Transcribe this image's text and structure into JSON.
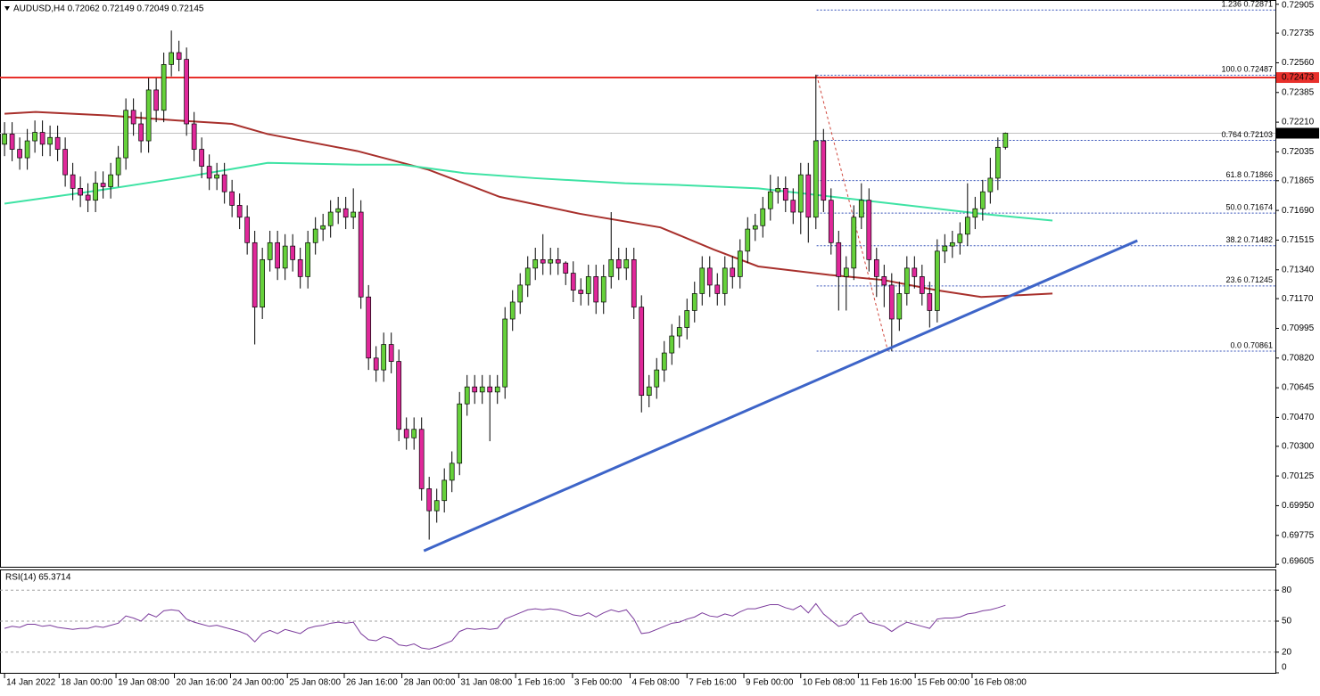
{
  "chart_data": [
    {
      "type": "candlestick",
      "title": "AUDUSD,H4  0.72062 0.72149 0.72049 0.72145",
      "xlim": [
        -0.6,
        167.6
      ],
      "ylim": [
        0.6959,
        0.7293
      ],
      "xticks": [
        {
          "value": 0,
          "label": "14 Jan 2022"
        },
        {
          "value": 7.2,
          "label": "18 Jan 00:00"
        },
        {
          "value": 14.7,
          "label": "19 Jan 08:00"
        },
        {
          "value": 22.4,
          "label": "20 Jan 16:00"
        },
        {
          "value": 29.8,
          "label": "24 Jan 00:00"
        },
        {
          "value": 37.3,
          "label": "25 Jan 08:00"
        },
        {
          "value": 44.8,
          "label": "26 Jan 16:00"
        },
        {
          "value": 52.4,
          "label": "28 Jan 00:00"
        },
        {
          "value": 59.9,
          "label": "31 Jan 08:00"
        },
        {
          "value": 67.4,
          "label": "1 Feb 16:00"
        },
        {
          "value": 74.9,
          "label": "3 Feb 00:00"
        },
        {
          "value": 82.5,
          "label": "4 Feb 08:00"
        },
        {
          "value": 90,
          "label": "7 Feb 16:00"
        },
        {
          "value": 97.5,
          "label": "9 Feb 00:00"
        },
        {
          "value": 105,
          "label": "10 Feb 08:00"
        },
        {
          "value": 112.6,
          "label": "11 Feb 16:00"
        },
        {
          "value": 120.1,
          "label": "15 Feb 00:00"
        },
        {
          "value": 127.6,
          "label": "16 Feb 08:00"
        }
      ],
      "yticks": [
        0.72905,
        0.72735,
        {
          "value": 0.7256,
          "label": "0.72560"
        },
        0.72385,
        {
          "value": 0.7221,
          "label": "0.72210"
        },
        0.72035,
        0.71865,
        {
          "value": 0.7169,
          "label": "0.71690"
        },
        0.71515,
        {
          "value": 0.7134,
          "label": "0.71340"
        },
        {
          "value": 0.7117,
          "label": "0.71170"
        },
        0.70995,
        {
          "value": 0.7082,
          "label": "0.70820"
        },
        0.70645,
        {
          "value": 0.7047,
          "label": "0.70470"
        },
        {
          "value": 0.703,
          "label": "0.70300"
        },
        0.70125,
        {
          "value": 0.6995,
          "label": "0.69950"
        },
        0.69775,
        0.69605
      ],
      "up_color": "#66d13b",
      "down_color": "#e0289a",
      "open": [
        0.7208,
        0.7214,
        0.7205,
        0.72,
        0.721,
        0.7215,
        0.7208,
        0.7212,
        0.7205,
        0.719,
        0.7182,
        0.7178,
        0.7175,
        0.7185,
        0.7183,
        0.719,
        0.72,
        0.7228,
        0.722,
        0.721,
        0.724,
        0.7228,
        0.7255,
        0.7262,
        0.7258,
        0.722,
        0.7205,
        0.7195,
        0.7188,
        0.719,
        0.718,
        0.7172,
        0.7165,
        0.715,
        0.7112,
        0.714,
        0.715,
        0.7135,
        0.7148,
        0.714,
        0.713,
        0.715,
        0.7158,
        0.716,
        0.7168,
        0.717,
        0.7165,
        0.7168,
        0.7118,
        0.7082,
        0.7075,
        0.709,
        0.708,
        0.704,
        0.7035,
        0.704,
        0.7005,
        0.6992,
        0.6998,
        0.701,
        0.702,
        0.7055,
        0.7065,
        0.7062,
        0.7065,
        0.7062,
        0.7065,
        0.7105,
        0.7115,
        0.7125,
        0.7135,
        0.714,
        0.7138,
        0.714,
        0.7138,
        0.7132,
        0.7122,
        0.712,
        0.713,
        0.7115,
        0.713,
        0.714,
        0.7135,
        0.714,
        0.7112,
        0.706,
        0.7065,
        0.7075,
        0.7085,
        0.7095,
        0.71,
        0.711,
        0.712,
        0.7135,
        0.7125,
        0.712,
        0.7135,
        0.713,
        0.7145,
        0.7158,
        0.716,
        0.717,
        0.718,
        0.7182,
        0.7175,
        0.7168,
        0.719,
        0.7165,
        0.721,
        0.7175,
        0.715,
        0.713,
        0.7135,
        0.7165,
        0.7175,
        0.714,
        0.713,
        0.7125,
        0.7105,
        0.712,
        0.7135,
        0.713,
        0.712,
        0.711,
        0.7145,
        0.7148,
        0.715,
        0.7155,
        0.7165,
        0.717,
        0.718,
        0.7188,
        0.72062
      ],
      "high": [
        0.7221,
        0.7221,
        0.7212,
        0.7217,
        0.7222,
        0.7222,
        0.7219,
        0.7219,
        0.7212,
        0.7197,
        0.7189,
        0.7185,
        0.7192,
        0.7192,
        0.7197,
        0.7207,
        0.7235,
        0.7235,
        0.7227,
        0.7247,
        0.7247,
        0.7262,
        0.7275,
        0.7269,
        0.7265,
        0.7227,
        0.7212,
        0.7202,
        0.7197,
        0.7197,
        0.7187,
        0.7179,
        0.7172,
        0.7157,
        0.7147,
        0.7157,
        0.7157,
        0.7155,
        0.7155,
        0.7147,
        0.7157,
        0.7165,
        0.7167,
        0.7175,
        0.7177,
        0.7177,
        0.7182,
        0.7175,
        0.7125,
        0.7089,
        0.7097,
        0.7097,
        0.7087,
        0.7047,
        0.7047,
        0.7047,
        0.7012,
        0.7005,
        0.7017,
        0.7027,
        0.7062,
        0.7072,
        0.7072,
        0.7072,
        0.7072,
        0.7072,
        0.7112,
        0.7122,
        0.7132,
        0.7142,
        0.7147,
        0.7155,
        0.7147,
        0.7147,
        0.7139,
        0.7139,
        0.7129,
        0.7137,
        0.7137,
        0.7137,
        0.7168,
        0.7147,
        0.7147,
        0.7147,
        0.7119,
        0.7072,
        0.7082,
        0.7092,
        0.7102,
        0.7107,
        0.7117,
        0.7127,
        0.7142,
        0.7142,
        0.7132,
        0.7142,
        0.7142,
        0.7152,
        0.7165,
        0.7167,
        0.7177,
        0.719,
        0.7189,
        0.7189,
        0.7182,
        0.7197,
        0.7197,
        0.7249,
        0.7217,
        0.7182,
        0.7157,
        0.7142,
        0.7172,
        0.7185,
        0.7182,
        0.7147,
        0.7137,
        0.7132,
        0.7127,
        0.7142,
        0.7142,
        0.7137,
        0.7127,
        0.7152,
        0.7155,
        0.7157,
        0.7162,
        0.7185,
        0.7177,
        0.7187,
        0.72,
        0.7212,
        0.72149
      ],
      "low": [
        0.7201,
        0.7198,
        0.7193,
        0.7193,
        0.7203,
        0.7201,
        0.7201,
        0.7198,
        0.7183,
        0.7175,
        0.7171,
        0.7168,
        0.7168,
        0.7176,
        0.7176,
        0.7183,
        0.7193,
        0.7213,
        0.7203,
        0.7203,
        0.7221,
        0.7221,
        0.7248,
        0.7251,
        0.7213,
        0.7198,
        0.7188,
        0.7181,
        0.7181,
        0.7173,
        0.7165,
        0.7158,
        0.7143,
        0.709,
        0.7105,
        0.7133,
        0.7128,
        0.7128,
        0.7133,
        0.7123,
        0.7123,
        0.7143,
        0.7151,
        0.7153,
        0.7161,
        0.7158,
        0.7158,
        0.7111,
        0.7075,
        0.7068,
        0.7068,
        0.7073,
        0.7033,
        0.7028,
        0.7028,
        0.6998,
        0.6975,
        0.6985,
        0.6991,
        0.7003,
        0.7013,
        0.7048,
        0.7055,
        0.7055,
        0.7033,
        0.7055,
        0.7058,
        0.7098,
        0.7108,
        0.7118,
        0.7128,
        0.7131,
        0.7131,
        0.7131,
        0.7125,
        0.7115,
        0.7113,
        0.7113,
        0.7108,
        0.7108,
        0.7123,
        0.7128,
        0.7128,
        0.7105,
        0.705,
        0.7053,
        0.7058,
        0.7068,
        0.7078,
        0.7088,
        0.7093,
        0.7103,
        0.7113,
        0.7118,
        0.7113,
        0.7113,
        0.7123,
        0.7123,
        0.7138,
        0.7151,
        0.7153,
        0.7163,
        0.7173,
        0.7168,
        0.7161,
        0.7155,
        0.715,
        0.7158,
        0.7168,
        0.7143,
        0.711,
        0.711,
        0.7128,
        0.7158,
        0.7133,
        0.7118,
        0.7112,
        0.7086,
        0.7098,
        0.7113,
        0.7123,
        0.7113,
        0.71,
        0.7103,
        0.7138,
        0.7141,
        0.7143,
        0.7148,
        0.7158,
        0.7163,
        0.7173,
        0.7181,
        0.72049
      ],
      "close": [
        0.7214,
        0.7205,
        0.72,
        0.721,
        0.7215,
        0.7208,
        0.7212,
        0.7205,
        0.719,
        0.7182,
        0.7178,
        0.7175,
        0.7185,
        0.7183,
        0.719,
        0.72,
        0.7228,
        0.722,
        0.721,
        0.724,
        0.7228,
        0.7255,
        0.7262,
        0.7258,
        0.722,
        0.7205,
        0.7195,
        0.7188,
        0.719,
        0.718,
        0.7172,
        0.7165,
        0.715,
        0.7112,
        0.714,
        0.715,
        0.7135,
        0.7148,
        0.714,
        0.713,
        0.715,
        0.7158,
        0.716,
        0.7168,
        0.717,
        0.7165,
        0.7168,
        0.7118,
        0.7082,
        0.7075,
        0.709,
        0.708,
        0.704,
        0.7035,
        0.704,
        0.7005,
        0.6992,
        0.6998,
        0.701,
        0.702,
        0.7055,
        0.7065,
        0.7062,
        0.7065,
        0.7062,
        0.7065,
        0.7105,
        0.7115,
        0.7125,
        0.7135,
        0.714,
        0.7138,
        0.714,
        0.7138,
        0.7132,
        0.7122,
        0.712,
        0.713,
        0.7115,
        0.713,
        0.714,
        0.7135,
        0.714,
        0.7112,
        0.706,
        0.7065,
        0.7075,
        0.7085,
        0.7095,
        0.71,
        0.711,
        0.712,
        0.7135,
        0.7125,
        0.712,
        0.7135,
        0.713,
        0.7145,
        0.7158,
        0.716,
        0.717,
        0.718,
        0.7182,
        0.7175,
        0.7168,
        0.719,
        0.7165,
        0.721,
        0.7175,
        0.715,
        0.713,
        0.7135,
        0.7165,
        0.7175,
        0.714,
        0.713,
        0.7125,
        0.7105,
        0.712,
        0.7135,
        0.713,
        0.712,
        0.711,
        0.7145,
        0.7148,
        0.715,
        0.7155,
        0.7165,
        0.717,
        0.718,
        0.7188,
        0.72062,
        0.72145
      ],
      "moving_averages": [
        {
          "color": "#a8302c",
          "x": [
            0,
            4.1,
            13.5,
            22.9,
            30,
            34.7,
            46.5,
            55.9,
            65.3,
            75.9,
            86.5,
            93.5,
            99.4,
            108.8,
            115.9,
            122.9,
            128.8,
            138.2
          ],
          "values": [
            0.7226,
            0.7227,
            0.7225,
            0.7222,
            0.722,
            0.7214,
            0.7204,
            0.7193,
            0.7177,
            0.7167,
            0.7159,
            0.7146,
            0.7136,
            0.7131,
            0.7128,
            0.7122,
            0.7118,
            0.712
          ]
        },
        {
          "color": "#3ee3a4",
          "x": [
            0,
            11.2,
            22.9,
            34.7,
            46.5,
            52.4,
            60.6,
            70,
            81.8,
            88.8,
            99.4,
            111.2,
            117.1,
            128.8,
            138.2
          ],
          "values": [
            0.7173,
            0.718,
            0.7188,
            0.7197,
            0.7196,
            0.7196,
            0.7191,
            0.7188,
            0.7185,
            0.7184,
            0.7182,
            0.7176,
            0.7173,
            0.7167,
            0.7163
          ]
        }
      ],
      "trendline": {
        "color": "#3d64c8",
        "x": [
          55.3,
          149.4
        ],
        "values": [
          0.69684,
          0.71512
        ]
      },
      "fib_diagonal": {
        "color": "#d0463c",
        "x": [
          107.1,
          116.5
        ],
        "values": [
          0.72487,
          0.70861
        ]
      },
      "fib_color": "#3450b8",
      "fib_levels": [
        {
          "value": 0.72871,
          "label": "1.236 0.72871"
        },
        {
          "value": 0.72487,
          "label": "100.0 0.72487"
        },
        {
          "value": 0.72103,
          "label": "0.764 0.72103"
        },
        {
          "value": 0.71866,
          "label": "61.8 0.71866"
        },
        {
          "value": 0.71674,
          "label": "50.0 0.71674"
        },
        {
          "value": 0.71482,
          "label": "38.2 0.71482"
        },
        {
          "value": 0.71245,
          "label": "23.6 0.71245"
        },
        {
          "value": 0.70861,
          "label": "0.0 0.70861"
        }
      ],
      "hline": {
        "value": 0.72473,
        "color": "#e8302b"
      },
      "last_price": 0.72145
    },
    {
      "type": "line",
      "title": "RSI(14) 65.3714",
      "color": "#7b3b9c",
      "ylim": [
        0,
        100
      ],
      "yticks": [
        80,
        50,
        20,
        0
      ],
      "values": [
        43,
        45,
        44,
        47,
        47,
        45,
        46,
        44,
        43,
        42,
        43,
        43,
        45,
        44,
        46,
        48,
        55,
        53,
        50,
        57,
        54,
        60,
        61,
        60,
        52,
        49,
        47,
        45,
        46,
        44,
        42,
        40,
        37,
        30,
        38,
        41,
        38,
        42,
        40,
        38,
        43,
        45,
        46,
        48,
        49,
        48,
        49,
        38,
        32,
        31,
        35,
        33,
        27,
        26,
        28,
        24,
        23,
        25,
        28,
        31,
        40,
        43,
        42,
        43,
        42,
        43,
        52,
        55,
        58,
        61,
        62,
        61,
        62,
        61,
        59,
        56,
        55,
        58,
        54,
        58,
        61,
        59,
        61,
        52,
        38,
        39,
        42,
        45,
        48,
        49,
        52,
        54,
        58,
        55,
        54,
        57,
        55,
        59,
        62,
        62,
        64,
        66,
        66,
        63,
        61,
        65,
        58,
        67,
        57,
        51,
        45,
        47,
        55,
        58,
        49,
        47,
        45,
        40,
        45,
        49,
        47,
        45,
        43,
        52,
        53,
        53,
        54,
        57,
        58,
        60,
        61,
        63,
        65.3714
      ]
    }
  ]
}
